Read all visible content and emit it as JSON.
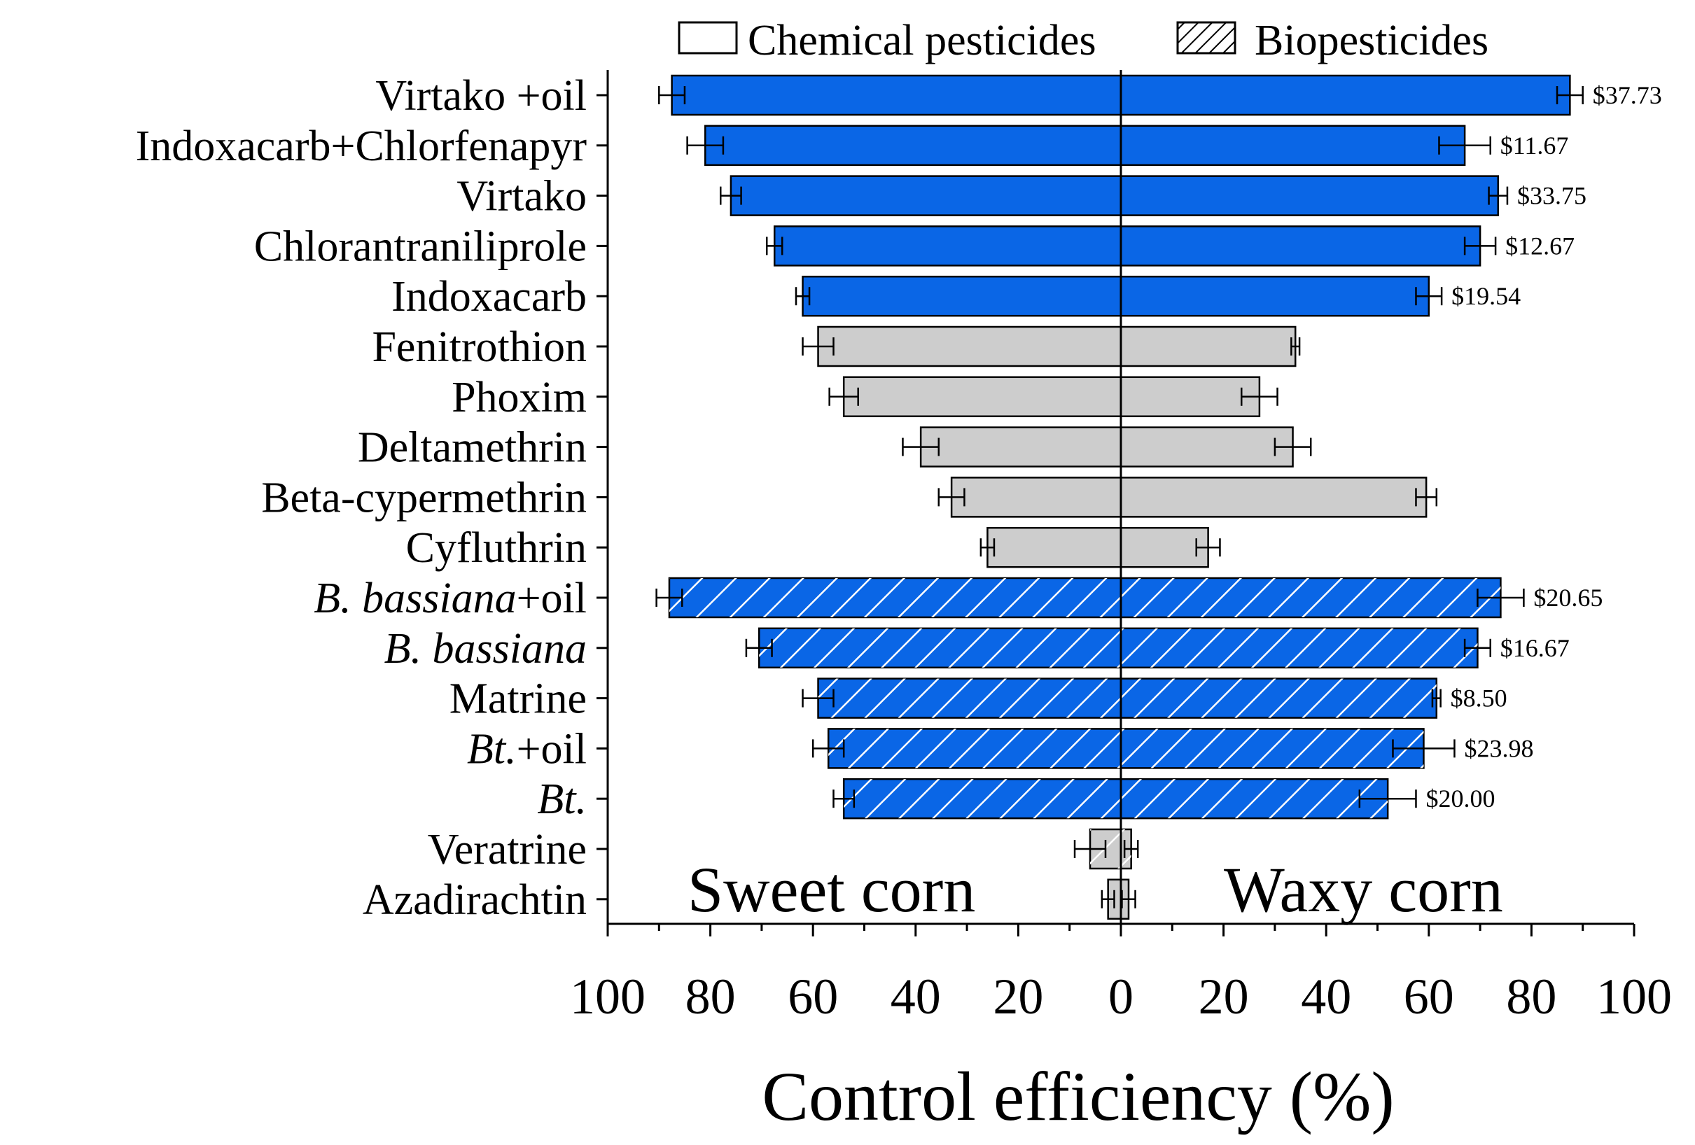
{
  "chart_data": {
    "type": "bar",
    "orientation": "horizontal-back-to-back",
    "xlabel": "Control efficiency (%)",
    "left_axis_ticks": [
      "100",
      "80",
      "60",
      "40",
      "20"
    ],
    "right_axis_ticks": [
      "0",
      "20",
      "40",
      "60",
      "80",
      "100"
    ],
    "xlim": [
      0,
      100
    ],
    "group_labels": {
      "left": "Sweet corn",
      "right": "Waxy corn"
    },
    "legend": {
      "position": "top",
      "chemical": "Chemical pesticides",
      "bio": "Biopesticides"
    },
    "colors": {
      "effective": "#0a66e6",
      "less_effective": "#cdcdcd",
      "edge": "#000000",
      "hatch": "#ffffff"
    },
    "categories": [
      {
        "label": "Virtako +oil",
        "type": "chemical",
        "highlight": true,
        "sweet": 87.5,
        "sweet_err": 2.5,
        "waxy": 87.5,
        "waxy_err": 2.5,
        "cost": "$37.73"
      },
      {
        "label": "Indoxacarb+Chlorfenapyr",
        "type": "chemical",
        "highlight": true,
        "sweet": 81.0,
        "sweet_err": 3.5,
        "waxy": 67.0,
        "waxy_err": 5.0,
        "cost": "$11.67"
      },
      {
        "label": "Virtako",
        "type": "chemical",
        "highlight": true,
        "sweet": 76.0,
        "sweet_err": 2.0,
        "waxy": 73.5,
        "waxy_err": 1.8,
        "cost": "$33.75"
      },
      {
        "label": "Chlorantraniliprole",
        "type": "chemical",
        "highlight": true,
        "sweet": 67.5,
        "sweet_err": 1.5,
        "waxy": 70.0,
        "waxy_err": 3.0,
        "cost": "$12.67"
      },
      {
        "label": "Indoxacarb",
        "type": "chemical",
        "highlight": true,
        "sweet": 62.0,
        "sweet_err": 1.3,
        "waxy": 60.0,
        "waxy_err": 2.5,
        "cost": "$19.54"
      },
      {
        "label": "Fenitrothion",
        "type": "chemical",
        "highlight": false,
        "sweet": 59.0,
        "sweet_err": 3.0,
        "waxy": 34.0,
        "waxy_err": 0.8,
        "cost": ""
      },
      {
        "label": "Phoxim",
        "type": "chemical",
        "highlight": false,
        "sweet": 54.0,
        "sweet_err": 2.8,
        "waxy": 27.0,
        "waxy_err": 3.5,
        "cost": ""
      },
      {
        "label": "Deltamethrin",
        "type": "chemical",
        "highlight": false,
        "sweet": 39.0,
        "sweet_err": 3.5,
        "waxy": 33.5,
        "waxy_err": 3.5,
        "cost": ""
      },
      {
        "label": "Beta-cypermethrin",
        "type": "chemical",
        "highlight": false,
        "sweet": 33.0,
        "sweet_err": 2.5,
        "waxy": 59.5,
        "waxy_err": 2.0,
        "cost": ""
      },
      {
        "label": "Cyfluthrin",
        "type": "chemical",
        "highlight": false,
        "sweet": 26.0,
        "sweet_err": 1.3,
        "waxy": 17.0,
        "waxy_err": 2.3,
        "cost": ""
      },
      {
        "label": "B. bassiana+oil",
        "type": "bio",
        "highlight": true,
        "italic": "B. bassiana",
        "rest": "+oil",
        "sweet": 88.0,
        "sweet_err": 2.5,
        "waxy": 74.0,
        "waxy_err": 4.5,
        "cost": "$20.65"
      },
      {
        "label": "B. bassiana",
        "type": "bio",
        "highlight": true,
        "italic": "B. bassiana",
        "rest": "",
        "sweet": 70.5,
        "sweet_err": 2.5,
        "waxy": 69.5,
        "waxy_err": 2.5,
        "cost": "$16.67"
      },
      {
        "label": "Matrine",
        "type": "bio",
        "highlight": true,
        "italic": "",
        "rest": "Matrine",
        "sweet": 59.0,
        "sweet_err": 3.0,
        "waxy": 61.5,
        "waxy_err": 0.8,
        "cost": "$8.50"
      },
      {
        "label": "Bt.+oil",
        "type": "bio",
        "highlight": true,
        "italic": "Bt.",
        "rest": "+oil",
        "sweet": 57.0,
        "sweet_err": 3.0,
        "waxy": 59.0,
        "waxy_err": 6.0,
        "cost": "$23.98"
      },
      {
        "label": "Bt.",
        "type": "bio",
        "highlight": true,
        "italic": "Bt.",
        "rest": "",
        "sweet": 54.0,
        "sweet_err": 2.0,
        "waxy": 52.0,
        "waxy_err": 5.5,
        "cost": "$20.00"
      },
      {
        "label": "Veratrine",
        "type": "bio",
        "highlight": false,
        "italic": "",
        "rest": "Veratrine",
        "sweet": 6.0,
        "sweet_err": 3.0,
        "waxy": 2.0,
        "waxy_err": 1.3,
        "cost": ""
      },
      {
        "label": "Azadirachtin",
        "type": "chemical",
        "highlight": false,
        "sweet": 2.5,
        "sweet_err": 1.2,
        "waxy": 1.5,
        "waxy_err": 1.3,
        "cost": ""
      }
    ]
  }
}
